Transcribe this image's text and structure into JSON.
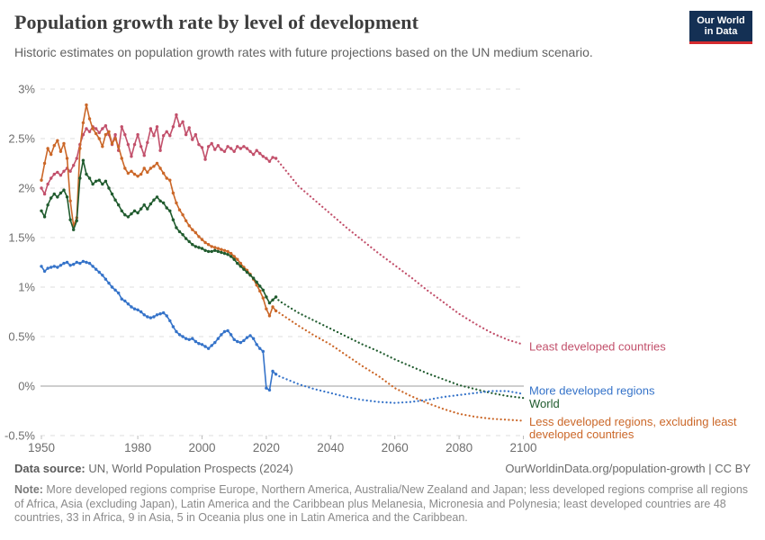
{
  "header": {
    "title": "Population growth rate by level of development",
    "subtitle": "Historic estimates on population growth rates with future projections based on the UN medium scenario."
  },
  "logo": {
    "line1": "Our World",
    "line2": "in Data",
    "bg": "#143054",
    "accent": "#d42b2f"
  },
  "chart_data": {
    "type": "line",
    "title": "Population growth rate by level of development",
    "xlabel": "",
    "ylabel": "",
    "grid": "dashed-horizontal",
    "legend_position": "right-of-line-ends",
    "xlim": [
      1948,
      2106
    ],
    "ylim": [
      -0.5,
      3
    ],
    "x_ticks": [
      1950,
      1980,
      2000,
      2020,
      2040,
      2060,
      2080,
      2100
    ],
    "y_ticks": [
      3,
      2.5,
      2,
      1.5,
      1,
      0.5,
      0,
      -0.5
    ],
    "y_tick_labels": [
      "3%",
      "2.5%",
      "2%",
      "1.5%",
      "1%",
      "0.5%",
      "0%",
      "-0.5%"
    ],
    "history_start_year": 1950,
    "history_end_year": 2023,
    "projection_years": [
      2024,
      2030,
      2035,
      2040,
      2045,
      2050,
      2055,
      2060,
      2065,
      2070,
      2075,
      2080,
      2085,
      2090,
      2095,
      2100
    ],
    "series": [
      {
        "name": "Least developed countries",
        "label_lines": [
          "Least developed countries"
        ],
        "color": "#C2506B",
        "label_value": 0.4,
        "history_values": [
          2.0,
          1.94,
          2.04,
          2.1,
          2.14,
          2.16,
          2.13,
          2.17,
          2.2,
          2.17,
          2.23,
          2.3,
          2.44,
          2.54,
          2.6,
          2.57,
          2.62,
          2.6,
          2.56,
          2.6,
          2.63,
          2.54,
          2.44,
          2.54,
          2.38,
          2.62,
          2.54,
          2.44,
          2.32,
          2.44,
          2.54,
          2.42,
          2.33,
          2.46,
          2.6,
          2.53,
          2.62,
          2.38,
          2.53,
          2.57,
          2.53,
          2.62,
          2.74,
          2.63,
          2.67,
          2.54,
          2.61,
          2.49,
          2.54,
          2.44,
          2.41,
          2.29,
          2.42,
          2.45,
          2.39,
          2.43,
          2.39,
          2.37,
          2.42,
          2.4,
          2.37,
          2.42,
          2.4,
          2.42,
          2.4,
          2.37,
          2.34,
          2.38,
          2.35,
          2.32,
          2.3,
          2.27,
          2.31,
          2.3
        ],
        "projection_values": [
          2.26,
          2.02,
          1.88,
          1.74,
          1.6,
          1.47,
          1.34,
          1.22,
          1.1,
          0.97,
          0.85,
          0.73,
          0.63,
          0.54,
          0.47,
          0.42
        ]
      },
      {
        "name": "Less developed regions, excluding least developed countries",
        "label_lines": [
          "Less developed regions, excluding least",
          "developed countries"
        ],
        "color": "#CB6728",
        "label_value": -0.36,
        "history_values": [
          2.08,
          2.25,
          2.4,
          2.34,
          2.43,
          2.48,
          2.37,
          2.45,
          2.3,
          1.87,
          1.62,
          1.7,
          2.4,
          2.66,
          2.84,
          2.7,
          2.6,
          2.55,
          2.5,
          2.42,
          2.54,
          2.57,
          2.45,
          2.5,
          2.42,
          2.3,
          2.2,
          2.15,
          2.17,
          2.14,
          2.12,
          2.14,
          2.2,
          2.16,
          2.2,
          2.22,
          2.25,
          2.2,
          2.15,
          2.1,
          2.08,
          1.95,
          1.85,
          1.78,
          1.73,
          1.67,
          1.62,
          1.58,
          1.55,
          1.51,
          1.48,
          1.45,
          1.43,
          1.41,
          1.4,
          1.39,
          1.38,
          1.37,
          1.36,
          1.34,
          1.31,
          1.28,
          1.24,
          1.2,
          1.17,
          1.13,
          1.08,
          1.02,
          0.96,
          0.89,
          0.78,
          0.71,
          0.8,
          0.76
        ],
        "projection_values": [
          0.74,
          0.61,
          0.51,
          0.42,
          0.31,
          0.2,
          0.1,
          -0.02,
          -0.1,
          -0.17,
          -0.23,
          -0.28,
          -0.31,
          -0.33,
          -0.34,
          -0.35
        ]
      },
      {
        "name": "World",
        "label_lines": [
          "World"
        ],
        "color": "#205B2E",
        "label_value": -0.175,
        "history_values": [
          1.77,
          1.71,
          1.83,
          1.9,
          1.94,
          1.91,
          1.95,
          1.98,
          1.91,
          1.68,
          1.58,
          1.67,
          2.1,
          2.28,
          2.14,
          2.1,
          2.04,
          2.07,
          2.08,
          2.04,
          2.07,
          2.0,
          1.94,
          1.88,
          1.83,
          1.77,
          1.73,
          1.71,
          1.74,
          1.77,
          1.75,
          1.79,
          1.83,
          1.79,
          1.84,
          1.88,
          1.91,
          1.87,
          1.85,
          1.8,
          1.77,
          1.68,
          1.6,
          1.56,
          1.53,
          1.49,
          1.46,
          1.43,
          1.41,
          1.4,
          1.39,
          1.37,
          1.36,
          1.36,
          1.37,
          1.36,
          1.35,
          1.34,
          1.33,
          1.31,
          1.28,
          1.24,
          1.21,
          1.18,
          1.15,
          1.12,
          1.09,
          1.05,
          1.01,
          0.97,
          0.9,
          0.84,
          0.87,
          0.9
        ],
        "projection_values": [
          0.86,
          0.74,
          0.66,
          0.58,
          0.5,
          0.42,
          0.35,
          0.27,
          0.2,
          0.13,
          0.07,
          0.01,
          -0.03,
          -0.07,
          -0.1,
          -0.12
        ]
      },
      {
        "name": "More developed regions",
        "label_lines": [
          "More developed regions"
        ],
        "color": "#3573C9",
        "label_value": -0.045,
        "history_values": [
          1.21,
          1.16,
          1.19,
          1.2,
          1.21,
          1.2,
          1.22,
          1.24,
          1.25,
          1.22,
          1.23,
          1.25,
          1.24,
          1.26,
          1.25,
          1.24,
          1.21,
          1.18,
          1.15,
          1.12,
          1.08,
          1.04,
          1.0,
          0.97,
          0.94,
          0.88,
          0.86,
          0.83,
          0.8,
          0.78,
          0.77,
          0.75,
          0.72,
          0.7,
          0.69,
          0.7,
          0.72,
          0.73,
          0.74,
          0.71,
          0.66,
          0.6,
          0.55,
          0.52,
          0.5,
          0.48,
          0.47,
          0.48,
          0.45,
          0.43,
          0.42,
          0.4,
          0.38,
          0.41,
          0.44,
          0.48,
          0.52,
          0.55,
          0.56,
          0.52,
          0.47,
          0.45,
          0.44,
          0.46,
          0.49,
          0.51,
          0.48,
          0.42,
          0.38,
          0.35,
          -0.02,
          -0.04,
          0.15,
          0.12
        ],
        "projection_values": [
          0.1,
          0.02,
          -0.03,
          -0.07,
          -0.11,
          -0.14,
          -0.16,
          -0.17,
          -0.16,
          -0.14,
          -0.11,
          -0.09,
          -0.07,
          -0.05,
          -0.05,
          -0.08
        ]
      }
    ]
  },
  "footer": {
    "source_label": "Data source:",
    "source_text": " UN, World Population Prospects (2024)",
    "credit": "OurWorldinData.org/population-growth | CC BY",
    "note_label": "Note:",
    "note_text": " More developed regions comprise Europe, Northern America, Australia/New Zealand and Japan; less developed regions comprise all regions of Africa, Asia (excluding Japan), Latin America and the Caribbean plus Melanesia, Micronesia and Polynesia; least developed countries are 48 countries, 33 in Africa, 9 in Asia, 5 in Oceania plus one in Latin America and the Caribbean."
  }
}
